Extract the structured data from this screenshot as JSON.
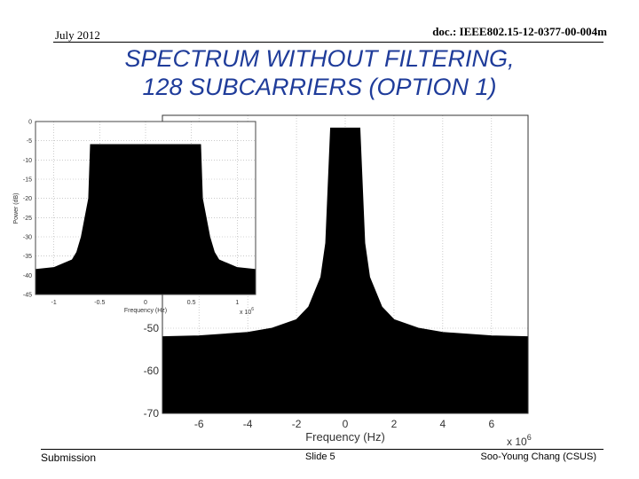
{
  "header": {
    "date": "July 2012",
    "doc_id": "doc.: IEEE802.15-12-0377-00-004m"
  },
  "title": {
    "line1": "SPECTRUM WITHOUT FILTERING,",
    "line2": "128 SUBCARRIERS (OPTION 1)"
  },
  "footer": {
    "left": "Submission",
    "center": "Slide 5",
    "right": "Soo-Young Chang (CSUS)"
  },
  "chart_data": [
    {
      "type": "area",
      "xlabel": "Frequency (Hz)",
      "ylabel": "",
      "x_multiplier": "x 10^6",
      "x_ticks": [
        -6,
        -4,
        -2,
        0,
        2,
        4,
        6
      ],
      "y_ticks": [
        -50,
        -60,
        -70
      ],
      "xlim": [
        -7.5,
        7.5
      ],
      "ylim": [
        -70,
        0
      ],
      "grid": true,
      "x": [
        -7.5,
        -6,
        -4,
        -3,
        -2,
        -1.5,
        -1.0,
        -0.8,
        -0.6,
        0.6,
        0.8,
        1.0,
        1.5,
        2,
        3,
        4,
        6,
        7.5
      ],
      "y": [
        -52,
        -51.8,
        -51,
        -50,
        -48,
        -45,
        -38,
        -30,
        -3,
        -3,
        -30,
        -38,
        -45,
        -48,
        -50,
        -51,
        -51.8,
        -52
      ]
    },
    {
      "type": "area",
      "xlabel": "Frequency (Hz)",
      "ylabel": "Power (dB)",
      "x_multiplier": "x 10^6",
      "x_ticks": [
        -1,
        -0.5,
        0,
        0.5,
        1
      ],
      "y_ticks": [
        0,
        -5,
        -10,
        -15,
        -20,
        -25,
        -30,
        -35,
        -40,
        -45
      ],
      "xlim": [
        -1.2,
        1.2
      ],
      "ylim": [
        -45,
        0
      ],
      "grid": true,
      "x": [
        -1.2,
        -1.0,
        -0.8,
        -0.75,
        -0.7,
        -0.62,
        -0.6,
        0.6,
        0.62,
        0.7,
        0.75,
        0.8,
        1.0,
        1.2
      ],
      "y": [
        -38.5,
        -38,
        -36,
        -34,
        -30,
        -20,
        -6,
        -6,
        -20,
        -30,
        -34,
        -36,
        -38,
        -38.5
      ]
    }
  ]
}
